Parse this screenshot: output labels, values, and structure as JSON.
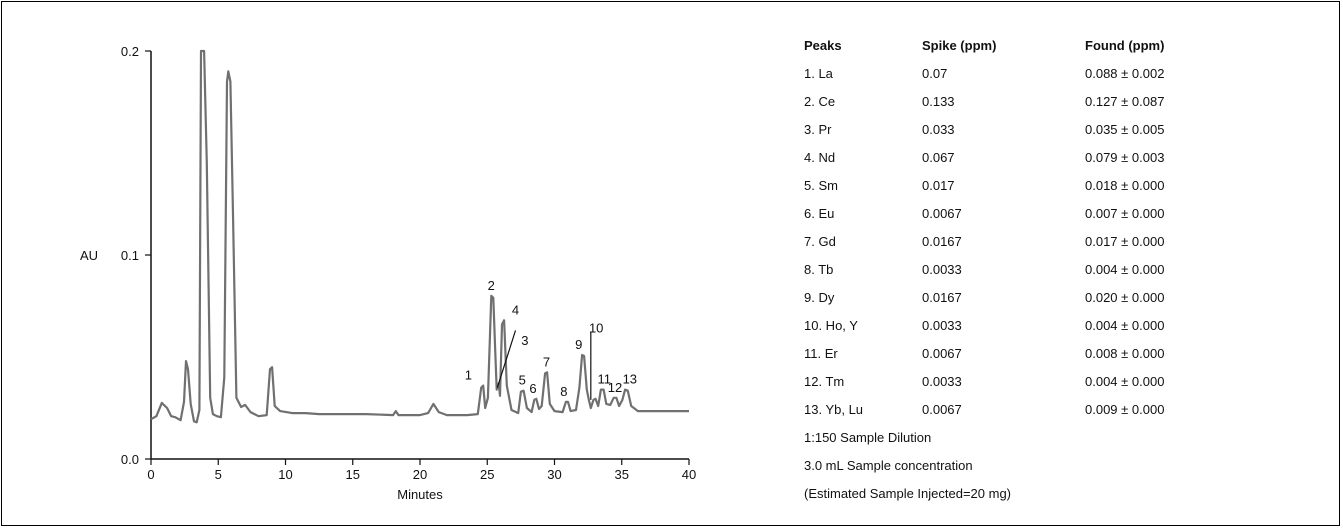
{
  "chart_data": {
    "type": "line",
    "xlabel": "Minutes",
    "ylabel": "AU",
    "xlim": [
      0,
      40
    ],
    "ylim": [
      0.0,
      0.2
    ],
    "x_ticks": [
      "0",
      "5",
      "10",
      "15",
      "20",
      "25",
      "30",
      "35",
      "40"
    ],
    "y_ticks": [
      "0.0",
      "0.1",
      "0.2"
    ],
    "grid": false,
    "series": [
      {
        "points": [
          [
            0,
            0.0195
          ],
          [
            0.4,
            0.021
          ],
          [
            0.8,
            0.0275
          ],
          [
            1.2,
            0.025
          ],
          [
            1.5,
            0.021
          ],
          [
            1.8,
            0.0205
          ],
          [
            2.2,
            0.019
          ],
          [
            2.45,
            0.028
          ],
          [
            2.6,
            0.048
          ],
          [
            2.75,
            0.044
          ],
          [
            2.95,
            0.027
          ],
          [
            3.2,
            0.0185
          ],
          [
            3.4,
            0.018
          ],
          [
            3.6,
            0.024
          ],
          [
            3.72,
            0.2
          ],
          [
            3.85,
            0.2
          ],
          [
            3.95,
            0.2
          ],
          [
            4.15,
            0.145
          ],
          [
            4.4,
            0.03
          ],
          [
            4.6,
            0.022
          ],
          [
            4.9,
            0.021
          ],
          [
            5.2,
            0.0205
          ],
          [
            5.45,
            0.04
          ],
          [
            5.65,
            0.185
          ],
          [
            5.75,
            0.19
          ],
          [
            5.9,
            0.185
          ],
          [
            6.1,
            0.12
          ],
          [
            6.35,
            0.03
          ],
          [
            6.7,
            0.0255
          ],
          [
            7.0,
            0.0265
          ],
          [
            7.4,
            0.023
          ],
          [
            8.0,
            0.021
          ],
          [
            8.6,
            0.0215
          ],
          [
            8.85,
            0.044
          ],
          [
            9.0,
            0.045
          ],
          [
            9.2,
            0.026
          ],
          [
            9.6,
            0.0235
          ],
          [
            10.5,
            0.0225
          ],
          [
            11.5,
            0.0225
          ],
          [
            12.5,
            0.022
          ],
          [
            14,
            0.022
          ],
          [
            16,
            0.022
          ],
          [
            18.0,
            0.0215
          ],
          [
            18.2,
            0.0235
          ],
          [
            18.4,
            0.0215
          ],
          [
            20,
            0.0215
          ],
          [
            20.6,
            0.0225
          ],
          [
            21.0,
            0.027
          ],
          [
            21.4,
            0.023
          ],
          [
            22,
            0.0215
          ],
          [
            23.5,
            0.0215
          ],
          [
            24.3,
            0.022
          ],
          [
            24.55,
            0.035
          ],
          [
            24.7,
            0.036
          ],
          [
            24.85,
            0.025
          ],
          [
            25.05,
            0.03
          ],
          [
            25.3,
            0.08
          ],
          [
            25.45,
            0.079
          ],
          [
            25.6,
            0.052
          ],
          [
            25.7,
            0.034
          ],
          [
            25.85,
            0.037
          ],
          [
            25.95,
            0.031
          ],
          [
            26.1,
            0.066
          ],
          [
            26.25,
            0.068
          ],
          [
            26.45,
            0.036
          ],
          [
            26.8,
            0.024
          ],
          [
            27.3,
            0.0225
          ],
          [
            27.5,
            0.033
          ],
          [
            27.7,
            0.0335
          ],
          [
            27.95,
            0.025
          ],
          [
            28.3,
            0.023
          ],
          [
            28.5,
            0.029
          ],
          [
            28.65,
            0.0295
          ],
          [
            28.85,
            0.0245
          ],
          [
            29.05,
            0.026
          ],
          [
            29.3,
            0.042
          ],
          [
            29.45,
            0.0425
          ],
          [
            29.65,
            0.027
          ],
          [
            30,
            0.0235
          ],
          [
            30.6,
            0.023
          ],
          [
            30.85,
            0.028
          ],
          [
            31.0,
            0.028
          ],
          [
            31.2,
            0.0235
          ],
          [
            31.6,
            0.024
          ],
          [
            31.85,
            0.035
          ],
          [
            32.05,
            0.051
          ],
          [
            32.2,
            0.0505
          ],
          [
            32.4,
            0.034
          ],
          [
            32.55,
            0.029
          ],
          [
            32.7,
            0.025
          ],
          [
            32.9,
            0.029
          ],
          [
            33.05,
            0.0295
          ],
          [
            33.25,
            0.026
          ],
          [
            33.45,
            0.034
          ],
          [
            33.65,
            0.034
          ],
          [
            33.85,
            0.027
          ],
          [
            34.15,
            0.0265
          ],
          [
            34.4,
            0.03
          ],
          [
            34.6,
            0.03
          ],
          [
            34.8,
            0.026
          ],
          [
            35.05,
            0.029
          ],
          [
            35.25,
            0.034
          ],
          [
            35.45,
            0.0335
          ],
          [
            35.7,
            0.026
          ],
          [
            36.2,
            0.0235
          ],
          [
            37,
            0.0235
          ],
          [
            38,
            0.0235
          ],
          [
            39,
            0.0235
          ],
          [
            40,
            0.0235
          ]
        ]
      }
    ],
    "annotations": [
      {
        "text": "1",
        "x": 24.6,
        "y": 0.036
      },
      {
        "text": "2",
        "x": 25.3,
        "y": 0.08
      },
      {
        "text": "3",
        "x": 26.0,
        "y": 0.05
      },
      {
        "text": "4",
        "x": 26.2,
        "y": 0.068
      },
      {
        "text": "5",
        "x": 27.6,
        "y": 0.0335
      },
      {
        "text": "6",
        "x": 28.6,
        "y": 0.0295
      },
      {
        "text": "7",
        "x": 29.4,
        "y": 0.0425
      },
      {
        "text": "8",
        "x": 30.9,
        "y": 0.028
      },
      {
        "text": "9",
        "x": 32.1,
        "y": 0.051
      },
      {
        "text": "10",
        "x": 32.7,
        "y": 0.06
      },
      {
        "text": "11",
        "x": 33.5,
        "y": 0.034
      },
      {
        "text": "12",
        "x": 34.5,
        "y": 0.03
      },
      {
        "text": "13",
        "x": 35.3,
        "y": 0.034
      }
    ]
  },
  "table": {
    "headers": [
      "Peaks",
      "Spike (ppm)",
      "Found (ppm)"
    ],
    "rows": [
      [
        "1.   La",
        "0.07",
        "0.088 ± 0.002"
      ],
      [
        "2.   Ce",
        "0.133",
        "0.127 ± 0.087"
      ],
      [
        "3.   Pr",
        "0.033",
        "0.035 ± 0.005"
      ],
      [
        "4.   Nd",
        "0.067",
        "0.079 ± 0.003"
      ],
      [
        "5.   Sm",
        "0.017",
        "0.018 ± 0.000"
      ],
      [
        "6.   Eu",
        "0.0067",
        "0.007 ± 0.000"
      ],
      [
        "7.   Gd",
        "0.0167",
        "0.017 ± 0.000"
      ],
      [
        "8.   Tb",
        "0.0033",
        "0.004 ± 0.000"
      ],
      [
        "9.   Dy",
        "0.0167",
        "0.020 ± 0.000"
      ],
      [
        "10.  Ho, Y",
        "0.0033",
        "0.004 ± 0.000"
      ],
      [
        "11.  Er",
        "0.0067",
        "0.008 ± 0.000"
      ],
      [
        "12.  Tm",
        "0.0033",
        "0.004 ± 0.000"
      ],
      [
        "13.  Yb, Lu",
        "0.0067",
        "0.009 ± 0.000"
      ]
    ],
    "notes": [
      "1:150 Sample Dilution",
      "3.0 mL Sample concentration",
      "(Estimated Sample Injected=20 mg)"
    ]
  },
  "colors": {
    "trace": "#707070",
    "axis": "#111111",
    "frame": "#000000"
  }
}
